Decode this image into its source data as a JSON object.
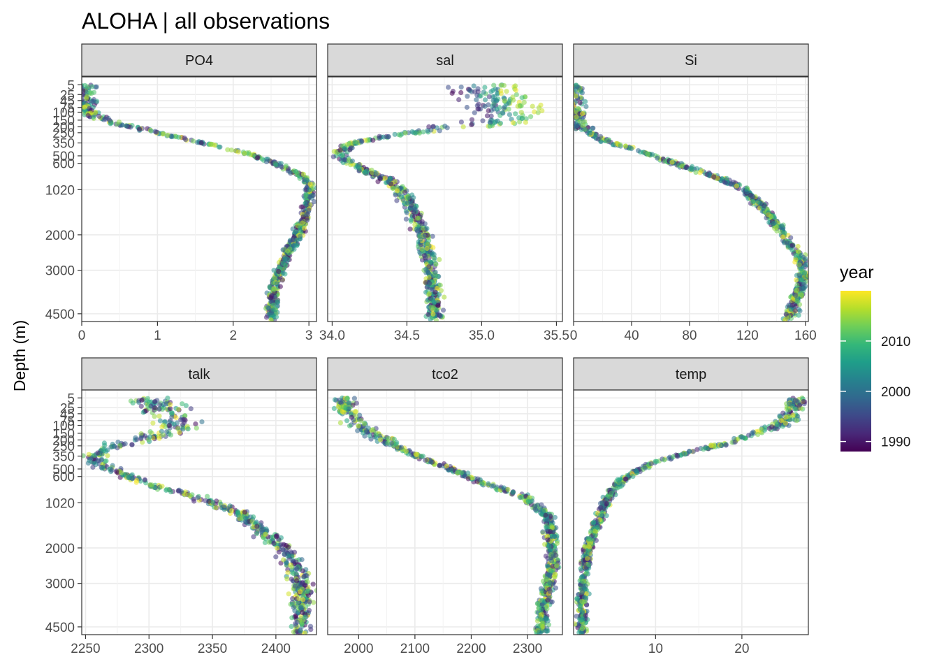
{
  "chart_data": {
    "type": "scatter",
    "title": "ALOHA | all observations",
    "ylabel": "Depth (m)",
    "xlabel": "",
    "y_scale": "reverse-sqrt",
    "y_ticks": [
      5,
      25,
      45,
      75,
      100,
      150,
      200,
      250,
      350,
      500,
      600,
      1020,
      2000,
      3000,
      4500
    ],
    "y_tick_labels": [
      "5",
      "25",
      "45",
      "75",
      "100",
      "150",
      "200",
      "250",
      "350",
      "500",
      "600",
      "1020",
      "2000",
      "3000",
      "4500"
    ],
    "ylim": [
      0,
      4800
    ],
    "grid": true,
    "legend": {
      "title": "year",
      "position": "right",
      "type": "colorbar",
      "palette": "viridis",
      "range": [
        1988,
        2020
      ],
      "ticks": [
        1990,
        2000,
        2010
      ],
      "tick_labels": [
        "1990",
        "2000",
        "2010"
      ],
      "colors": [
        "#440154",
        "#482878",
        "#3e4989",
        "#31688e",
        "#26828e",
        "#1f9e89",
        "#35b779",
        "#6ece58",
        "#b5de2b",
        "#fde725"
      ]
    },
    "panels": [
      {
        "name": "PO4",
        "xlim": [
          0,
          3.1
        ],
        "x_ticks": [
          0,
          1,
          2,
          3
        ],
        "x_tick_labels": [
          "0",
          "1",
          "2",
          "3"
        ],
        "profile": [
          [
            5,
            0.05
          ],
          [
            25,
            0.05
          ],
          [
            45,
            0.05
          ],
          [
            75,
            0.06
          ],
          [
            100,
            0.1
          ],
          [
            125,
            0.18
          ],
          [
            150,
            0.3
          ],
          [
            175,
            0.45
          ],
          [
            200,
            0.65
          ],
          [
            250,
            1.0
          ],
          [
            300,
            1.3
          ],
          [
            350,
            1.6
          ],
          [
            400,
            1.85
          ],
          [
            450,
            2.1
          ],
          [
            500,
            2.3
          ],
          [
            600,
            2.55
          ],
          [
            700,
            2.75
          ],
          [
            800,
            2.92
          ],
          [
            900,
            3.0
          ],
          [
            1020,
            3.02
          ],
          [
            1200,
            3.0
          ],
          [
            1500,
            2.95
          ],
          [
            2000,
            2.85
          ],
          [
            2500,
            2.72
          ],
          [
            3000,
            2.62
          ],
          [
            3500,
            2.55
          ],
          [
            4000,
            2.52
          ],
          [
            4500,
            2.5
          ],
          [
            4750,
            2.5
          ]
        ],
        "spread": 0.05
      },
      {
        "name": "sal",
        "xlim": [
          33.97,
          35.54
        ],
        "x_ticks": [
          34.0,
          34.5,
          35.0,
          35.5
        ],
        "x_tick_labels": [
          "34.0",
          "34.5",
          "35.0",
          "35.5"
        ],
        "profile": [
          [
            5,
            35.05
          ],
          [
            25,
            35.08
          ],
          [
            45,
            35.1
          ],
          [
            75,
            35.15
          ],
          [
            100,
            35.2
          ],
          [
            125,
            35.22
          ],
          [
            150,
            35.2
          ],
          [
            175,
            35.05
          ],
          [
            200,
            34.85
          ],
          [
            250,
            34.55
          ],
          [
            300,
            34.3
          ],
          [
            350,
            34.15
          ],
          [
            400,
            34.08
          ],
          [
            450,
            34.05
          ],
          [
            500,
            34.05
          ],
          [
            600,
            34.12
          ],
          [
            700,
            34.22
          ],
          [
            800,
            34.32
          ],
          [
            900,
            34.4
          ],
          [
            1020,
            34.45
          ],
          [
            1200,
            34.5
          ],
          [
            1500,
            34.56
          ],
          [
            2000,
            34.6
          ],
          [
            2500,
            34.64
          ],
          [
            3000,
            34.66
          ],
          [
            3500,
            34.67
          ],
          [
            4000,
            34.68
          ],
          [
            4500,
            34.69
          ],
          [
            4750,
            34.69
          ]
        ],
        "spread": 0.04
      },
      {
        "name": "Si",
        "xlim": [
          0,
          162
        ],
        "x_ticks": [
          0,
          40,
          80,
          120,
          160
        ],
        "x_tick_labels": [
          "0",
          "40",
          "80",
          "120",
          "160"
        ],
        "profile": [
          [
            5,
            1
          ],
          [
            25,
            1
          ],
          [
            45,
            1
          ],
          [
            75,
            1.2
          ],
          [
            100,
            1.5
          ],
          [
            125,
            2
          ],
          [
            150,
            3
          ],
          [
            200,
            6
          ],
          [
            250,
            11
          ],
          [
            300,
            18
          ],
          [
            350,
            27
          ],
          [
            400,
            37
          ],
          [
            450,
            46
          ],
          [
            500,
            55
          ],
          [
            600,
            70
          ],
          [
            700,
            85
          ],
          [
            800,
            98
          ],
          [
            900,
            108
          ],
          [
            1020,
            118
          ],
          [
            1200,
            125
          ],
          [
            1500,
            135
          ],
          [
            2000,
            145
          ],
          [
            2500,
            155
          ],
          [
            3000,
            159
          ],
          [
            3500,
            157
          ],
          [
            4000,
            153
          ],
          [
            4500,
            150
          ],
          [
            4750,
            148
          ]
        ],
        "spread": 3
      },
      {
        "name": "talk",
        "xlim": [
          2247,
          2432
        ],
        "x_ticks": [
          2250,
          2300,
          2350,
          2400
        ],
        "x_tick_labels": [
          "2250",
          "2300",
          "2350",
          "2400"
        ],
        "profile": [
          [
            5,
            2305
          ],
          [
            25,
            2310
          ],
          [
            45,
            2315
          ],
          [
            75,
            2320
          ],
          [
            100,
            2320
          ],
          [
            125,
            2318
          ],
          [
            150,
            2310
          ],
          [
            200,
            2295
          ],
          [
            250,
            2275
          ],
          [
            300,
            2262
          ],
          [
            350,
            2256
          ],
          [
            400,
            2258
          ],
          [
            450,
            2262
          ],
          [
            500,
            2268
          ],
          [
            600,
            2285
          ],
          [
            700,
            2300
          ],
          [
            800,
            2318
          ],
          [
            900,
            2335
          ],
          [
            1020,
            2350
          ],
          [
            1200,
            2370
          ],
          [
            1500,
            2385
          ],
          [
            2000,
            2405
          ],
          [
            2500,
            2415
          ],
          [
            3000,
            2420
          ],
          [
            3500,
            2420
          ],
          [
            4000,
            2420
          ],
          [
            4500,
            2420
          ],
          [
            4750,
            2420
          ]
        ],
        "spread": 6
      },
      {
        "name": "tco2",
        "xlim": [
          1945,
          2362
        ],
        "x_ticks": [
          2000,
          2100,
          2200,
          2300
        ],
        "x_tick_labels": [
          "2000",
          "2100",
          "2200",
          "2300"
        ],
        "profile": [
          [
            5,
            1975
          ],
          [
            25,
            1978
          ],
          [
            45,
            1982
          ],
          [
            75,
            1990
          ],
          [
            100,
            2000
          ],
          [
            125,
            2012
          ],
          [
            150,
            2025
          ],
          [
            200,
            2045
          ],
          [
            250,
            2065
          ],
          [
            300,
            2085
          ],
          [
            350,
            2105
          ],
          [
            400,
            2125
          ],
          [
            450,
            2145
          ],
          [
            500,
            2165
          ],
          [
            600,
            2195
          ],
          [
            700,
            2225
          ],
          [
            800,
            2260
          ],
          [
            900,
            2290
          ],
          [
            1020,
            2310
          ],
          [
            1200,
            2330
          ],
          [
            1500,
            2340
          ],
          [
            2000,
            2345
          ],
          [
            2500,
            2342
          ],
          [
            3000,
            2338
          ],
          [
            3500,
            2332
          ],
          [
            4000,
            2328
          ],
          [
            4500,
            2325
          ],
          [
            4750,
            2324
          ]
        ],
        "spread": 8
      },
      {
        "name": "temp",
        "xlim": [
          0.5,
          27.7
        ],
        "x_ticks": [
          10,
          20
        ],
        "x_tick_labels": [
          "10",
          "20"
        ],
        "profile": [
          [
            5,
            26.3
          ],
          [
            25,
            26.1
          ],
          [
            45,
            25.8
          ],
          [
            75,
            25.0
          ],
          [
            100,
            24.2
          ],
          [
            125,
            23.0
          ],
          [
            150,
            21.8
          ],
          [
            200,
            19.5
          ],
          [
            250,
            17.0
          ],
          [
            300,
            14.5
          ],
          [
            350,
            12.3
          ],
          [
            400,
            10.5
          ],
          [
            450,
            9.2
          ],
          [
            500,
            8.2
          ],
          [
            600,
            6.8
          ],
          [
            700,
            5.8
          ],
          [
            800,
            5.1
          ],
          [
            900,
            4.6
          ],
          [
            1020,
            4.2
          ],
          [
            1200,
            3.7
          ],
          [
            1500,
            3.0
          ],
          [
            2000,
            2.2
          ],
          [
            2500,
            1.8
          ],
          [
            3000,
            1.6
          ],
          [
            3500,
            1.5
          ],
          [
            4000,
            1.5
          ],
          [
            4500,
            1.5
          ],
          [
            4750,
            1.5
          ]
        ],
        "spread": 0.4
      }
    ]
  }
}
